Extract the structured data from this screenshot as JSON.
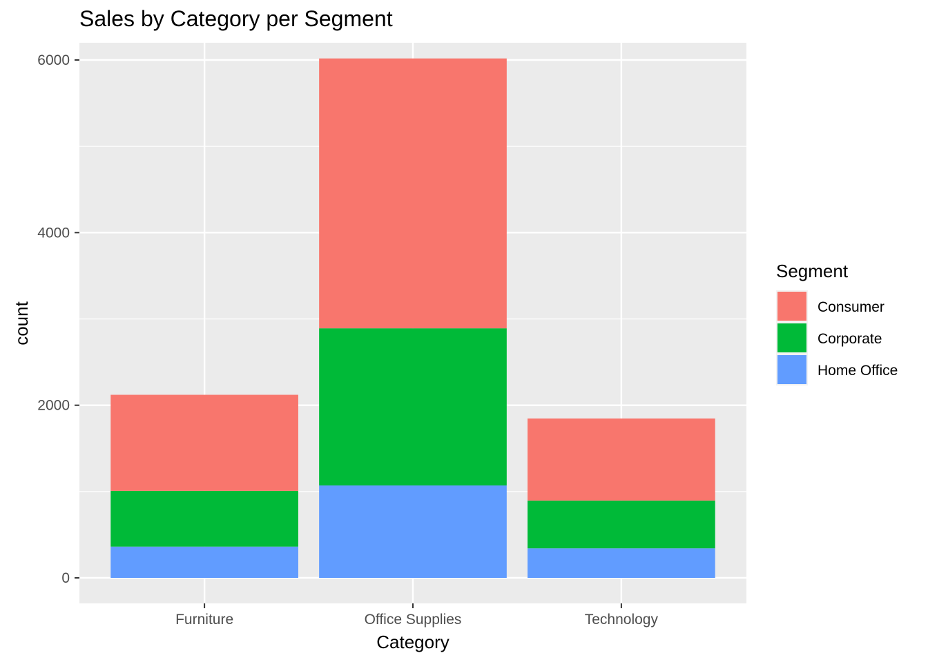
{
  "chart_data": {
    "type": "bar",
    "stacked": true,
    "title": "Sales by Category per Segment",
    "xlabel": "Category",
    "ylabel": "count",
    "categories": [
      "Furniture",
      "Office Supplies",
      "Technology"
    ],
    "series": [
      {
        "name": "Consumer",
        "color": "#F8766D",
        "values": [
          1113,
          3127,
          951
        ]
      },
      {
        "name": "Corporate",
        "color": "#00BA38",
        "values": [
          646,
          1820,
          554
        ]
      },
      {
        "name": "Home Office",
        "color": "#619CFF",
        "values": [
          362,
          1071,
          342
        ]
      }
    ],
    "ylim": [
      -300,
      6200
    ],
    "yticks": [
      0,
      2000,
      4000,
      6000
    ],
    "grid": true,
    "legend": {
      "title": "Segment",
      "placement": "right"
    }
  }
}
